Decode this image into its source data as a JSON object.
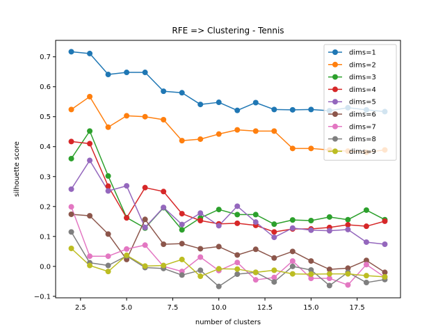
{
  "chart_data": {
    "type": "line",
    "title": "RFE => Clustering - Tennis",
    "xlabel": "number of clusters",
    "ylabel": "silhouette score",
    "xlim": [
      1.15,
      19.85
    ],
    "ylim": [
      -0.105,
      0.755
    ],
    "xticks": [
      2.5,
      5.0,
      7.5,
      10.0,
      12.5,
      15.0,
      17.5
    ],
    "xtick_labels": [
      "2.5",
      "5.0",
      "7.5",
      "10.0",
      "12.5",
      "15.0",
      "17.5"
    ],
    "yticks": [
      -0.1,
      0.0,
      0.1,
      0.2,
      0.3,
      0.4,
      0.5,
      0.6,
      0.7
    ],
    "ytick_labels": [
      "−0.1",
      "0.0",
      "0.1",
      "0.2",
      "0.3",
      "0.4",
      "0.5",
      "0.6",
      "0.7"
    ],
    "grid": false,
    "legend_position": "top-right",
    "x": [
      2,
      3,
      4,
      5,
      6,
      7,
      8,
      9,
      10,
      11,
      12,
      13,
      14,
      15,
      16,
      17,
      18,
      19
    ],
    "series": [
      {
        "name": "dims=1",
        "color": "#1f77b4",
        "values": [
          0.717,
          0.711,
          0.641,
          0.648,
          0.648,
          0.585,
          0.58,
          0.541,
          0.548,
          0.521,
          0.547,
          0.524,
          0.523,
          0.524,
          0.52,
          0.53,
          0.523,
          0.517
        ]
      },
      {
        "name": "dims=2",
        "color": "#ff7f0e",
        "values": [
          0.524,
          0.567,
          0.465,
          0.503,
          0.5,
          0.49,
          0.42,
          0.425,
          0.442,
          0.456,
          0.452,
          0.452,
          0.394,
          0.394,
          0.389,
          0.385,
          0.381,
          0.389
        ]
      },
      {
        "name": "dims=3",
        "color": "#2ca02c",
        "values": [
          0.36,
          0.452,
          0.302,
          0.163,
          0.128,
          0.196,
          0.122,
          0.162,
          0.19,
          0.173,
          0.173,
          0.141,
          0.155,
          0.153,
          0.165,
          0.156,
          0.188,
          0.156
        ]
      },
      {
        "name": "dims=4",
        "color": "#d62728",
        "values": [
          0.417,
          0.41,
          0.268,
          0.162,
          0.263,
          0.25,
          0.176,
          0.153,
          0.142,
          0.144,
          0.137,
          0.115,
          0.125,
          0.125,
          0.13,
          0.139,
          0.134,
          0.151
        ]
      },
      {
        "name": "dims=5",
        "color": "#9467bd",
        "values": [
          0.258,
          0.354,
          0.252,
          0.269,
          0.13,
          0.197,
          0.14,
          0.178,
          0.136,
          0.201,
          0.148,
          0.097,
          0.128,
          0.121,
          0.119,
          0.123,
          0.081,
          0.074
        ]
      },
      {
        "name": "dims=6",
        "color": "#8c564b",
        "values": [
          0.174,
          0.169,
          0.108,
          0.023,
          0.157,
          0.074,
          0.076,
          0.059,
          0.066,
          0.038,
          0.057,
          0.028,
          0.05,
          0.018,
          -0.01,
          -0.006,
          0.02,
          -0.02
        ]
      },
      {
        "name": "dims=7",
        "color": "#e377c2",
        "values": [
          0.199,
          0.034,
          0.034,
          0.058,
          0.071,
          0.0,
          -0.017,
          0.031,
          -0.014,
          0.013,
          -0.045,
          -0.037,
          0.018,
          -0.04,
          -0.04,
          -0.062,
          0.006,
          -0.036
        ]
      },
      {
        "name": "dims=8",
        "color": "#7f7f7f",
        "values": [
          0.115,
          0.012,
          0.003,
          0.035,
          -0.004,
          -0.007,
          -0.029,
          -0.013,
          -0.067,
          -0.026,
          -0.02,
          -0.052,
          0.0,
          -0.012,
          -0.064,
          -0.02,
          -0.054,
          -0.044
        ]
      },
      {
        "name": "dims=9",
        "color": "#bcbd22",
        "values": [
          0.06,
          0.003,
          -0.017,
          0.037,
          0.001,
          0.003,
          0.023,
          -0.033,
          -0.008,
          -0.009,
          -0.02,
          -0.013,
          -0.025,
          -0.026,
          -0.025,
          -0.025,
          -0.031,
          -0.035
        ]
      }
    ]
  }
}
